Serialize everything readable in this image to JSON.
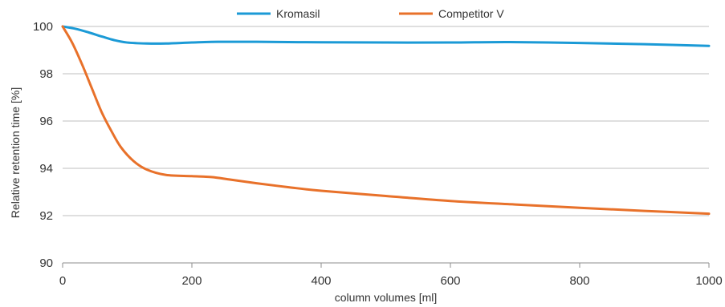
{
  "chart_data": {
    "type": "line",
    "title": "",
    "xlabel": "column volumes [ml]",
    "ylabel": "Relative retention time [%]",
    "xlim": [
      0,
      1000
    ],
    "ylim": [
      90,
      100
    ],
    "x_ticks": [
      0,
      200,
      400,
      600,
      800,
      1000
    ],
    "y_ticks": [
      90,
      92,
      94,
      96,
      98,
      100
    ],
    "grid": "horizontal",
    "legend_position": "top-center",
    "series": [
      {
        "name": "Kromasil",
        "color": "#1B9AD6",
        "points": [
          [
            0,
            100
          ],
          [
            20,
            99.9
          ],
          [
            40,
            99.75
          ],
          [
            60,
            99.58
          ],
          [
            80,
            99.42
          ],
          [
            100,
            99.32
          ],
          [
            130,
            99.28
          ],
          [
            160,
            99.28
          ],
          [
            200,
            99.32
          ],
          [
            240,
            99.35
          ],
          [
            300,
            99.35
          ],
          [
            400,
            99.33
          ],
          [
            500,
            99.32
          ],
          [
            600,
            99.32
          ],
          [
            690,
            99.34
          ],
          [
            800,
            99.3
          ],
          [
            900,
            99.25
          ],
          [
            1000,
            99.18
          ]
        ]
      },
      {
        "name": "Competitor V",
        "color": "#E8712A",
        "points": [
          [
            0,
            100
          ],
          [
            15,
            99.3
          ],
          [
            30,
            98.4
          ],
          [
            45,
            97.4
          ],
          [
            60,
            96.4
          ],
          [
            75,
            95.6
          ],
          [
            90,
            94.9
          ],
          [
            110,
            94.3
          ],
          [
            130,
            93.95
          ],
          [
            160,
            93.72
          ],
          [
            200,
            93.67
          ],
          [
            230,
            93.63
          ],
          [
            260,
            93.52
          ],
          [
            300,
            93.37
          ],
          [
            350,
            93.2
          ],
          [
            400,
            93.05
          ],
          [
            500,
            92.83
          ],
          [
            600,
            92.62
          ],
          [
            700,
            92.47
          ],
          [
            800,
            92.33
          ],
          [
            900,
            92.2
          ],
          [
            1000,
            92.08
          ]
        ]
      }
    ]
  }
}
